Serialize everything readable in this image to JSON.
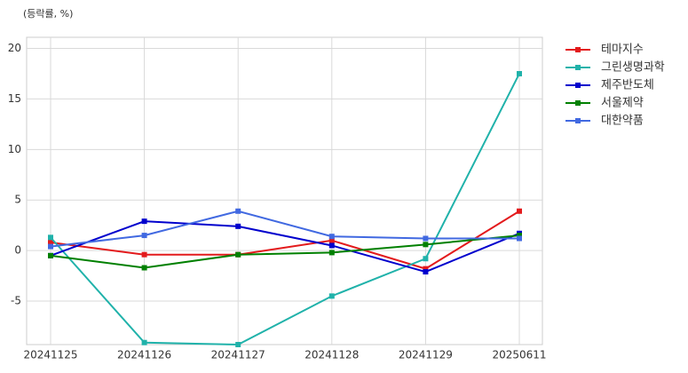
{
  "chart_data": {
    "type": "line",
    "ylabel": "(등락률, %)",
    "categories": [
      "20241125",
      "20241126",
      "20241127",
      "20241128",
      "20241129",
      "20250611"
    ],
    "series": [
      {
        "name": "테마지수",
        "color": "#e31a1c",
        "values": [
          0.8,
          -0.4,
          -0.4,
          1.0,
          -1.8,
          3.9
        ]
      },
      {
        "name": "그린생명과학",
        "color": "#20b2aa",
        "values": [
          1.3,
          -9.1,
          -9.3,
          -4.5,
          -0.8,
          17.5
        ]
      },
      {
        "name": "제주반도체",
        "color": "#0000cd",
        "values": [
          -0.5,
          2.9,
          2.4,
          0.5,
          -2.1,
          1.7
        ]
      },
      {
        "name": "서울제약",
        "color": "#008000",
        "values": [
          -0.5,
          -1.7,
          -0.4,
          -0.2,
          0.6,
          1.5
        ]
      },
      {
        "name": "대한약품",
        "color": "#4169e1",
        "values": [
          0.4,
          1.5,
          3.9,
          1.4,
          1.2,
          1.2
        ]
      }
    ],
    "ylim": [
      -9.3,
      21.1
    ],
    "yticks": [
      -5,
      0,
      5,
      10,
      15,
      20
    ],
    "grid": true,
    "legend": "outside-right"
  }
}
